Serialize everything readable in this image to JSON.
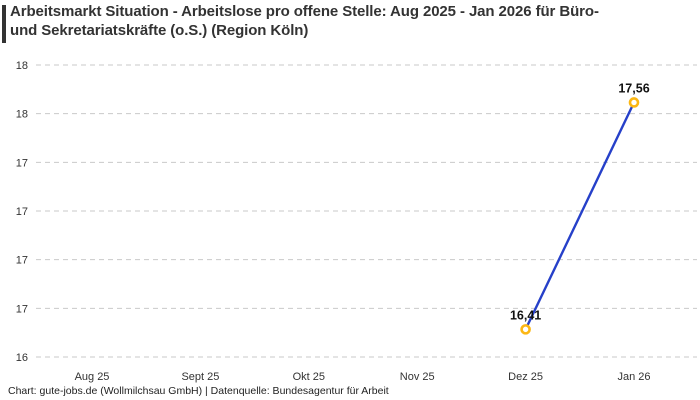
{
  "header": {
    "title_lines": [
      "Arbeitsmarkt Situation - Arbeitslose pro offene Stelle: Aug 2025 - Jan 2026 für Büro-",
      "und Sekretariatskräfte (o.S.) (Region Köln)"
    ]
  },
  "footer": {
    "credit": "Chart: gute-jobs.de (Wollmilchsau GmbH) | Datenquelle: Bundesagentur für Arbeit"
  },
  "colors": {
    "line": "#2640c9",
    "marker": "#fcb714",
    "gridline": "#c9c9c9",
    "accent_bar": "#333333"
  },
  "chart_data": {
    "type": "line",
    "title": "Arbeitsmarkt Situation - Arbeitslose pro offene Stelle: Aug 2025 - Jan 2026 für Büro- und Sekretariatskräfte (o.S.) (Region Köln)",
    "categories": [
      "Aug 25",
      "Sept 25",
      "Okt 25",
      "Nov 25",
      "Dez 25",
      "Jan 26"
    ],
    "series": [
      {
        "name": "Arbeitslose pro offene Stelle",
        "values": [
          null,
          null,
          null,
          null,
          16.41,
          17.56
        ],
        "value_labels": [
          null,
          null,
          null,
          null,
          "16,41",
          "17,56"
        ]
      }
    ],
    "xlabel": "",
    "ylabel": "",
    "ylim": [
      16.27,
      17.75
    ],
    "y_ticks_display": [
      "18",
      "18",
      "17",
      "17",
      "17",
      "17",
      "16"
    ],
    "grid": "horizontal-dashed",
    "legend": "none"
  }
}
